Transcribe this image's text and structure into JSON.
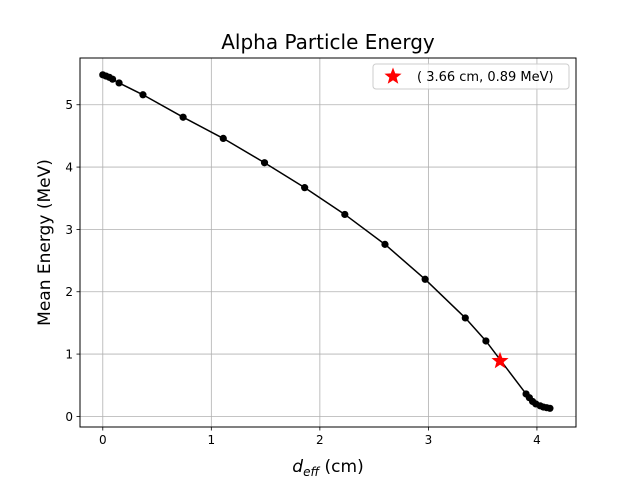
{
  "chart_data": {
    "type": "line",
    "title": "Alpha Particle Energy",
    "xlabel": {
      "symbol": "d",
      "subscript": "eff",
      "unit": " (cm)"
    },
    "ylabel": "Mean Energy (MeV)",
    "xlim": [
      -0.21,
      4.36
    ],
    "ylim": [
      -0.17,
      5.75
    ],
    "xticks": [
      0,
      1,
      2,
      3,
      4
    ],
    "yticks": [
      0,
      1,
      2,
      3,
      4,
      5
    ],
    "grid": true,
    "line_color": "#000000",
    "series": [
      {
        "x": [
          0.0,
          0.03,
          0.06,
          0.09,
          0.15,
          0.37,
          0.74,
          1.11,
          1.49,
          1.86,
          2.23,
          2.6,
          2.97,
          3.34,
          3.53,
          3.9,
          3.93,
          3.96,
          3.99,
          4.03,
          4.06,
          4.09,
          4.12
        ],
        "y": [
          5.48,
          5.46,
          5.44,
          5.41,
          5.35,
          5.16,
          4.8,
          4.46,
          4.07,
          3.67,
          3.24,
          2.76,
          2.2,
          1.58,
          1.21,
          0.36,
          0.3,
          0.24,
          0.2,
          0.17,
          0.15,
          0.14,
          0.13
        ]
      }
    ],
    "highlight": {
      "x": 3.66,
      "y": 0.89,
      "color": "#ff0000",
      "marker": "star",
      "label": "( 3.66 cm, 0.89 MeV)"
    },
    "legend_position": "top-right"
  }
}
